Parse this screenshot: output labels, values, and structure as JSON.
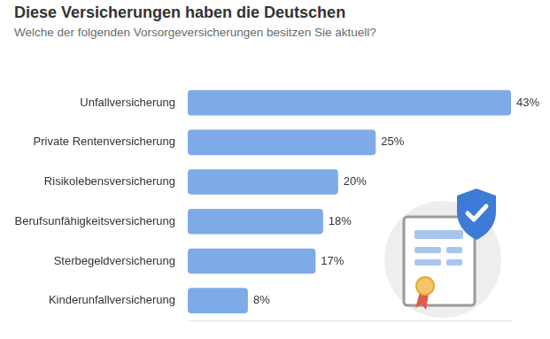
{
  "chart_data": {
    "type": "bar",
    "orientation": "horizontal",
    "title": "Diese Versicherungen haben die Deutschen",
    "subtitle": "Welche der folgenden Vorsorgeversicherungen besitzen Sie aktuell?",
    "categories": [
      "Unfallversicherung",
      "Private Rentenversicherung",
      "Risikolebensversicherung",
      "Berufsunfähigkeitsversicherung",
      "Sterbegeldversicherung",
      "Kinderunfallversicherung"
    ],
    "values": [
      43,
      25,
      20,
      18,
      17,
      8
    ],
    "value_labels": [
      "43%",
      "25%",
      "20%",
      "18%",
      "17%",
      "8%"
    ],
    "color": "#7eaae8",
    "xlim": [
      0,
      43
    ],
    "grid": false,
    "data_labels": true,
    "tick_labels": "y"
  }
}
